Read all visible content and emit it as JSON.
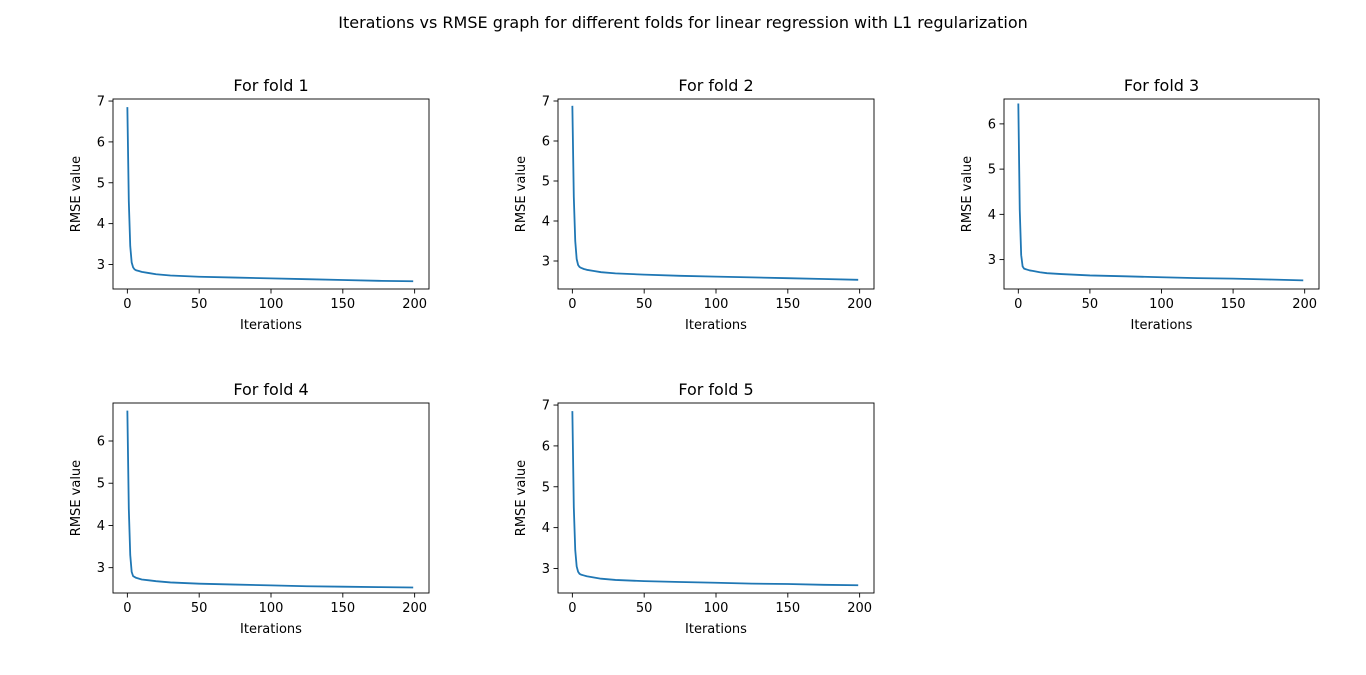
{
  "figure": {
    "suptitle": "Iterations vs RMSE graph for different folds for linear regression with L1 regularization"
  },
  "style": {
    "line_color": "#1f77b4",
    "axis_color": "#000000",
    "background": "#ffffff"
  },
  "chart_data": [
    {
      "type": "line",
      "title": "For fold 1",
      "xlabel": "Iterations",
      "ylabel": "RMSE value",
      "xlim": [
        -10,
        210
      ],
      "ylim": [
        2.4,
        7.05
      ],
      "xticks": [
        0,
        50,
        100,
        150,
        200
      ],
      "yticks": [
        3,
        4,
        5,
        6,
        7
      ],
      "grid": false,
      "series": [
        {
          "x": [
            0,
            1,
            2,
            3,
            4,
            5,
            6,
            8,
            10,
            15,
            20,
            30,
            50,
            75,
            100,
            125,
            150,
            175,
            199
          ],
          "y": [
            6.85,
            4.55,
            3.45,
            3.05,
            2.93,
            2.88,
            2.86,
            2.84,
            2.82,
            2.79,
            2.76,
            2.73,
            2.7,
            2.68,
            2.66,
            2.64,
            2.62,
            2.6,
            2.59
          ]
        }
      ]
    },
    {
      "type": "line",
      "title": "For fold 2",
      "xlabel": "Iterations",
      "ylabel": "RMSE value",
      "xlim": [
        -10,
        210
      ],
      "ylim": [
        2.3,
        7.05
      ],
      "xticks": [
        0,
        50,
        100,
        150,
        200
      ],
      "yticks": [
        3,
        4,
        5,
        6,
        7
      ],
      "grid": false,
      "series": [
        {
          "x": [
            0,
            1,
            2,
            3,
            4,
            5,
            6,
            8,
            10,
            15,
            20,
            30,
            50,
            75,
            100,
            125,
            150,
            175,
            199
          ],
          "y": [
            6.88,
            4.6,
            3.5,
            3.05,
            2.9,
            2.85,
            2.83,
            2.8,
            2.78,
            2.75,
            2.72,
            2.69,
            2.66,
            2.63,
            2.61,
            2.59,
            2.57,
            2.55,
            2.53
          ]
        }
      ]
    },
    {
      "type": "line",
      "title": "For fold 3",
      "xlabel": "Iterations",
      "ylabel": "RMSE value",
      "xlim": [
        -10,
        210
      ],
      "ylim": [
        2.35,
        6.55
      ],
      "xticks": [
        0,
        50,
        100,
        150,
        200
      ],
      "yticks": [
        3,
        4,
        5,
        6
      ],
      "grid": false,
      "series": [
        {
          "x": [
            0,
            1,
            2,
            3,
            4,
            5,
            6,
            8,
            10,
            15,
            20,
            30,
            50,
            75,
            100,
            125,
            150,
            175,
            199
          ],
          "y": [
            6.45,
            4.1,
            3.1,
            2.85,
            2.8,
            2.79,
            2.78,
            2.76,
            2.75,
            2.72,
            2.7,
            2.68,
            2.65,
            2.63,
            2.61,
            2.59,
            2.58,
            2.56,
            2.54
          ]
        }
      ]
    },
    {
      "type": "line",
      "title": "For fold 4",
      "xlabel": "Iterations",
      "ylabel": "RMSE value",
      "xlim": [
        -10,
        210
      ],
      "ylim": [
        2.4,
        6.9
      ],
      "xticks": [
        0,
        50,
        100,
        150,
        200
      ],
      "yticks": [
        3,
        4,
        5,
        6
      ],
      "grid": false,
      "series": [
        {
          "x": [
            0,
            1,
            2,
            3,
            4,
            5,
            6,
            8,
            10,
            15,
            20,
            30,
            50,
            75,
            100,
            125,
            150,
            175,
            199
          ],
          "y": [
            6.72,
            4.4,
            3.3,
            2.9,
            2.8,
            2.78,
            2.76,
            2.74,
            2.72,
            2.7,
            2.68,
            2.65,
            2.62,
            2.6,
            2.58,
            2.56,
            2.55,
            2.54,
            2.53
          ]
        }
      ]
    },
    {
      "type": "line",
      "title": "For fold 5",
      "xlabel": "Iterations",
      "ylabel": "RMSE value",
      "xlim": [
        -10,
        210
      ],
      "ylim": [
        2.4,
        7.05
      ],
      "xticks": [
        0,
        50,
        100,
        150,
        200
      ],
      "yticks": [
        3,
        4,
        5,
        6,
        7
      ],
      "grid": false,
      "series": [
        {
          "x": [
            0,
            1,
            2,
            3,
            4,
            5,
            6,
            8,
            10,
            15,
            20,
            30,
            50,
            75,
            100,
            125,
            150,
            175,
            199
          ],
          "y": [
            6.85,
            4.5,
            3.45,
            3.05,
            2.92,
            2.87,
            2.85,
            2.83,
            2.81,
            2.78,
            2.75,
            2.72,
            2.69,
            2.67,
            2.65,
            2.63,
            2.62,
            2.6,
            2.59
          ]
        }
      ]
    }
  ]
}
